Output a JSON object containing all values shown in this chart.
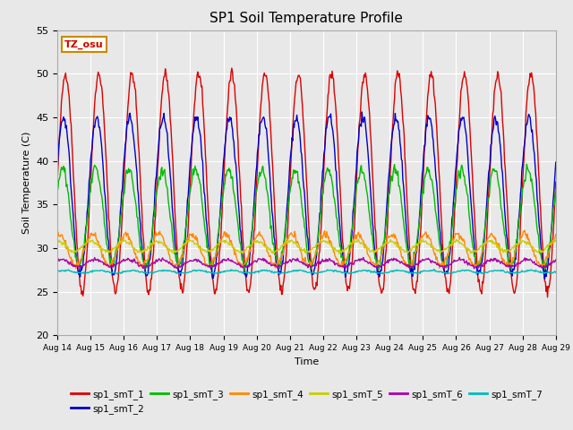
{
  "title": "SP1 Soil Temperature Profile",
  "xlabel": "Time",
  "ylabel": "Soil Temperature (C)",
  "ylim": [
    20,
    55
  ],
  "start_day": 14,
  "end_day": 29,
  "month": "Aug",
  "fig_bg": "#e8e8e8",
  "plot_bg": "#e8e8e8",
  "annotation_text": "TZ_osu",
  "annotation_color": "#cc0000",
  "annotation_bg": "#ffffee",
  "annotation_border": "#cc8800",
  "series": [
    {
      "label": "sp1_smT_1",
      "color": "#dd0000",
      "amp": 12.5,
      "mean": 37.5,
      "phase": 0.0,
      "noise": 0.3
    },
    {
      "label": "sp1_smT_2",
      "color": "#0000cc",
      "amp": 9.0,
      "mean": 36.0,
      "phase": 0.4,
      "noise": 0.3
    },
    {
      "label": "sp1_smT_3",
      "color": "#00bb00",
      "amp": 5.5,
      "mean": 33.5,
      "phase": 0.6,
      "noise": 0.3
    },
    {
      "label": "sp1_smT_4",
      "color": "#ff8800",
      "amp": 1.8,
      "mean": 29.8,
      "phase": 1.2,
      "noise": 0.2
    },
    {
      "label": "sp1_smT_5",
      "color": "#cccc00",
      "amp": 0.6,
      "mean": 30.2,
      "phase": 1.5,
      "noise": 0.1
    },
    {
      "label": "sp1_smT_6",
      "color": "#aa00aa",
      "amp": 0.4,
      "mean": 28.3,
      "phase": 0.8,
      "noise": 0.1
    },
    {
      "label": "sp1_smT_7",
      "color": "#00bbbb",
      "amp": 0.15,
      "mean": 27.3,
      "phase": 0.0,
      "noise": 0.05
    }
  ]
}
